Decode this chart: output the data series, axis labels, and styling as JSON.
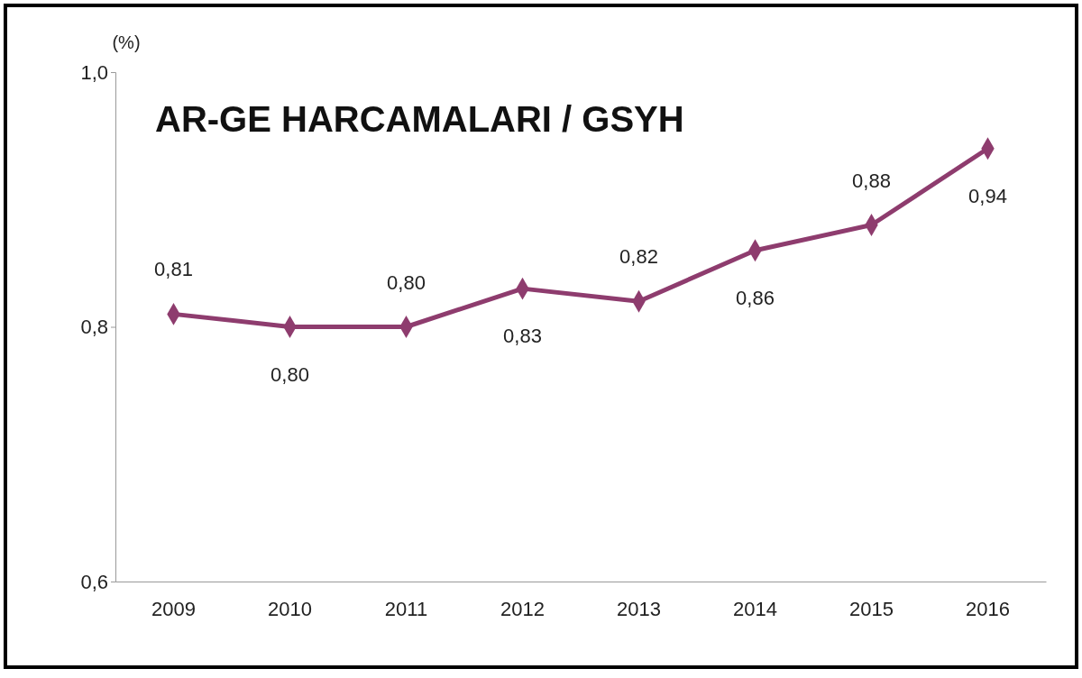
{
  "chart_data": {
    "type": "line",
    "title": "AR-GE HARCAMALARI / GSYH",
    "ylabel": "(%)",
    "categories": [
      "2009",
      "2010",
      "2011",
      "2012",
      "2013",
      "2014",
      "2015",
      "2016"
    ],
    "series": [
      {
        "color": "#8e3c6e",
        "values": [
          0.81,
          0.8,
          0.8,
          0.83,
          0.82,
          0.86,
          0.88,
          0.94
        ],
        "value_labels": [
          "0,81",
          "0,80",
          "0,80",
          "0,83",
          "0,82",
          "0,86",
          "0,88",
          "0,94"
        ]
      }
    ],
    "ylim": [
      0.6,
      1.0
    ],
    "yticks": [
      {
        "value": 0.6,
        "label": "0,6"
      },
      {
        "value": 0.8,
        "label": "0,8"
      },
      {
        "value": 1.0,
        "label": "1,0"
      }
    ],
    "grid": false,
    "marker": "diamond",
    "line_style": "solid"
  }
}
